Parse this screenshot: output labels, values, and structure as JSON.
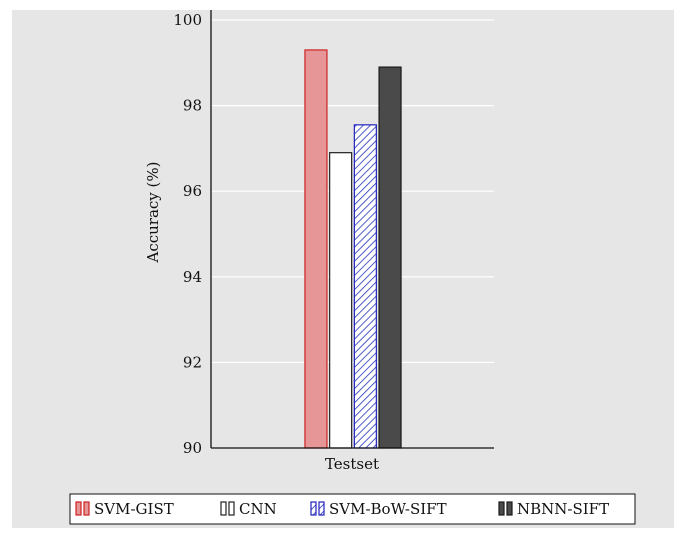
{
  "chart_data": {
    "type": "bar",
    "title": "",
    "xlabel": "Testset",
    "ylabel": "Accuracy (%)",
    "categories": [
      "Testset"
    ],
    "ylim": [
      90,
      100
    ],
    "yticks": [
      90,
      92,
      94,
      96,
      98,
      100
    ],
    "grid": true,
    "legend_position": "bottom",
    "series": [
      {
        "name": "SVM-GIST",
        "values": [
          99.3
        ],
        "fill": "#e69696",
        "stroke": "#cc2222",
        "pattern": "solid"
      },
      {
        "name": "CNN",
        "values": [
          96.9
        ],
        "fill": "#ffffff",
        "stroke": "#222222",
        "pattern": "solid"
      },
      {
        "name": "SVM-BoW-SIFT",
        "values": [
          97.55
        ],
        "fill": "#ffffff",
        "stroke": "#2222bb",
        "pattern": "hatch"
      },
      {
        "name": "NBNN-SIFT",
        "values": [
          98.9
        ],
        "fill": "#4a4a4a",
        "stroke": "#1a1a1a",
        "pattern": "solid"
      }
    ]
  },
  "colors": {
    "panel_background": "#e6e6e6",
    "page_background": "#ffffff"
  }
}
